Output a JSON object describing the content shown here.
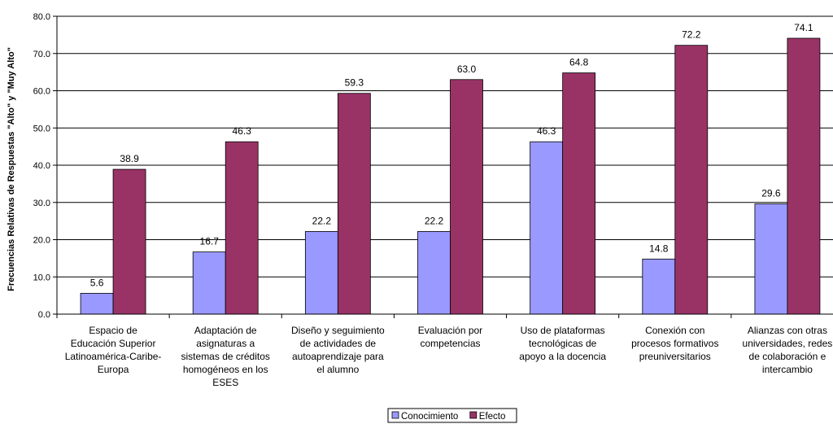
{
  "chart_data": {
    "type": "bar",
    "title": "",
    "xlabel": "",
    "ylabel": "Frecuencias Relativas de Respuestas \"Alto\" y \"Muy Alto\"",
    "ylim": [
      0,
      80
    ],
    "yticks": [
      "0.0",
      "10.0",
      "20.0",
      "30.0",
      "40.0",
      "50.0",
      "60.0",
      "70.0",
      "80.0"
    ],
    "grid": true,
    "legend_position": "bottom",
    "categories": [
      [
        "Espacio de",
        "Educación Superior",
        "Latinoamérica-Caribe-",
        "Europa"
      ],
      [
        "Adaptación de",
        "asignaturas a",
        "sistemas de créditos",
        "homogéneos en los",
        "ESES"
      ],
      [
        "Diseño y seguimiento",
        "de actividades de",
        "autoaprendizaje para",
        "el alumno"
      ],
      [
        "Evaluación por",
        "competencias"
      ],
      [
        "Uso de plataformas",
        "tecnológicas de",
        "apoyo a la docencia"
      ],
      [
        "Conexión con",
        "procesos formativos",
        "preuniversitarios"
      ],
      [
        "Alianzas con otras",
        "universidades, redes",
        "de colaboración e",
        "intercambio"
      ]
    ],
    "series": [
      {
        "name": "Conocimiento",
        "color": "#9999ff",
        "values": [
          5.6,
          16.7,
          22.2,
          22.2,
          46.3,
          14.8,
          29.6
        ]
      },
      {
        "name": "Efecto",
        "color": "#993366",
        "values": [
          38.9,
          46.3,
          59.3,
          63.0,
          64.8,
          72.2,
          74.1
        ]
      }
    ]
  }
}
